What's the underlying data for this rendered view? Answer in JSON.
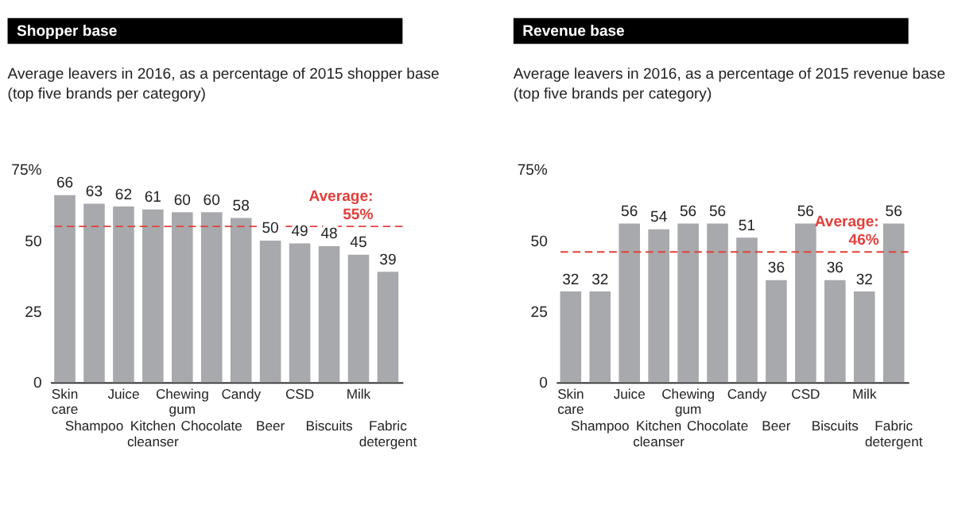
{
  "chart_data": [
    {
      "type": "bar",
      "title": "Shopper base",
      "subtitle": "Average leavers in 2016, as a percentage of 2015 shopper base\n(top five brands per category)",
      "categories": [
        "Skin care",
        "Shampoo",
        "Juice",
        "Kitchen cleanser",
        "Chewing gum",
        "Chocolate",
        "Candy",
        "Beer",
        "CSD",
        "Biscuits",
        "Milk",
        "Fabric detergent"
      ],
      "values": [
        66,
        63,
        62,
        61,
        60,
        60,
        58,
        50,
        49,
        48,
        45,
        39
      ],
      "color": "#a7a9ac",
      "ylim": [
        0,
        75
      ],
      "yticks": [
        0,
        25,
        50,
        {
          "value": 75,
          "label": "75%"
        }
      ],
      "data_labels": true,
      "ref_lines": [
        {
          "axis": "y",
          "value": 55,
          "label": "Average: 55%",
          "color": "#e2403b",
          "line_style": "dashed"
        }
      ]
    },
    {
      "type": "bar",
      "title": "Revenue base",
      "subtitle": "Average leavers in 2016, as a percentage of 2015 revenue base\n(top five brands per category)",
      "categories": [
        "Skin care",
        "Shampoo",
        "Juice",
        "Kitchen cleanser",
        "Chewing gum",
        "Chocolate",
        "Candy",
        "Beer",
        "CSD",
        "Biscuits",
        "Milk",
        "Fabric detergent"
      ],
      "values": [
        32,
        32,
        56,
        54,
        56,
        56,
        51,
        36,
        56,
        36,
        32,
        56
      ],
      "color": "#a7a9ac",
      "ylim": [
        0,
        75
      ],
      "yticks": [
        0,
        25,
        50,
        {
          "value": 75,
          "label": "75%"
        }
      ],
      "data_labels": true,
      "ref_lines": [
        {
          "axis": "y",
          "value": 46,
          "label": "Average: 46%",
          "color": "#e2403b",
          "line_style": "dashed"
        }
      ]
    }
  ]
}
